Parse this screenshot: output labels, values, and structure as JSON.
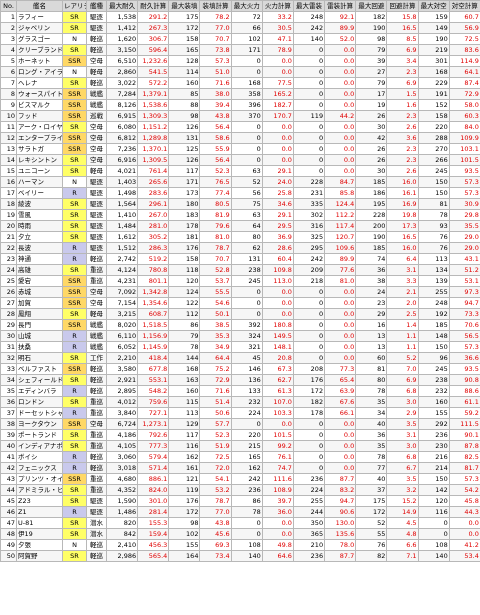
{
  "table": {
    "headers": [
      "No.",
      "艦名",
      "レアリティ",
      "艦種",
      "最大耐久",
      "耐久計算",
      "最大装填",
      "装填計算",
      "最大火力",
      "火力計算",
      "最大雷装",
      "雷装計算",
      "最大回避",
      "回避計算",
      "最大対空",
      "対空計算"
    ],
    "rarity_colors": {
      "N": "#ffffff",
      "R": "#c9c9ec",
      "SR": "#ffff66",
      "SSR": "#ffd866"
    },
    "calc_color": "#e00000",
    "rows": [
      [
        "1",
        "ラフィー",
        "SR",
        "駆逐",
        "1,538",
        "291.2",
        "175",
        "78.2",
        "72",
        "33.2",
        "248",
        "92.1",
        "182",
        "15.8",
        "159",
        "60.7"
      ],
      [
        "2",
        "ジャベリン",
        "SR",
        "駆逐",
        "1,412",
        "267.3",
        "172",
        "77.0",
        "66",
        "30.5",
        "242",
        "89.9",
        "190",
        "16.5",
        "149",
        "56.9"
      ],
      [
        "3",
        "グラスゴー",
        "N",
        "軽巡",
        "1,620",
        "306.7",
        "158",
        "70.7",
        "102",
        "47.1",
        "140",
        "52.0",
        "98",
        "8.5",
        "190",
        "72.5"
      ],
      [
        "4",
        "クリーブランド",
        "SR",
        "軽巡",
        "3,150",
        "596.4",
        "165",
        "73.8",
        "171",
        "78.9",
        "0",
        "0.0",
        "79",
        "6.9",
        "219",
        "83.6"
      ],
      [
        "5",
        "ホーネット",
        "SSR",
        "空母",
        "6,510",
        "1,232.6",
        "128",
        "57.3",
        "0",
        "0.0",
        "0",
        "0.0",
        "39",
        "3.4",
        "301",
        "114.9"
      ],
      [
        "6",
        "ロング・アイランド",
        "N",
        "軽母",
        "2,860",
        "541.5",
        "114",
        "51.0",
        "0",
        "0.0",
        "0",
        "0.0",
        "27",
        "2.3",
        "168",
        "64.1"
      ],
      [
        "7",
        "ヘレナ",
        "SR",
        "軽巡",
        "3,022",
        "572.2",
        "160",
        "71.6",
        "168",
        "77.5",
        "0",
        "0.0",
        "79",
        "6.9",
        "229",
        "87.4"
      ],
      [
        "8",
        "ウォースパイト",
        "SSR",
        "戦艦",
        "7,284",
        "1,379.1",
        "85",
        "38.0",
        "358",
        "165.2",
        "0",
        "0.0",
        "17",
        "1.5",
        "191",
        "72.9"
      ],
      [
        "9",
        "ビスマルク",
        "SSR",
        "戦艦",
        "8,126",
        "1,538.6",
        "88",
        "39.4",
        "396",
        "182.7",
        "0",
        "0.0",
        "19",
        "1.6",
        "152",
        "58.0"
      ],
      [
        "10",
        "フッド",
        "SSR",
        "巡戦",
        "6,915",
        "1,309.3",
        "98",
        "43.8",
        "370",
        "170.7",
        "119",
        "44.2",
        "26",
        "2.3",
        "158",
        "60.3"
      ],
      [
        "11",
        "アーク・ロイヤル",
        "SR",
        "空母",
        "6,080",
        "1,151.2",
        "126",
        "56.4",
        "0",
        "0.0",
        "0",
        "0.0",
        "30",
        "2.6",
        "220",
        "84.0"
      ],
      [
        "12",
        "エンタープライズ",
        "SSR",
        "空母",
        "6,812",
        "1,289.8",
        "131",
        "58.6",
        "0",
        "0.0",
        "0",
        "0.0",
        "42",
        "3.6",
        "288",
        "109.9"
      ],
      [
        "13",
        "サラトガ",
        "SSR",
        "空母",
        "7,236",
        "1,370.1",
        "125",
        "55.9",
        "0",
        "0.0",
        "0",
        "0.0",
        "26",
        "2.3",
        "270",
        "103.1"
      ],
      [
        "14",
        "レキシントン",
        "SR",
        "空母",
        "6,916",
        "1,309.5",
        "126",
        "56.4",
        "0",
        "0.0",
        "0",
        "0.0",
        "26",
        "2.3",
        "266",
        "101.5"
      ],
      [
        "15",
        "ユニコーン",
        "SR",
        "軽母",
        "4,021",
        "761.4",
        "117",
        "52.3",
        "63",
        "29.1",
        "0",
        "0.0",
        "30",
        "2.6",
        "245",
        "93.5"
      ],
      [
        "16",
        "ハーマン",
        "N",
        "駆逐",
        "1,403",
        "265.6",
        "171",
        "76.5",
        "52",
        "24.0",
        "228",
        "84.7",
        "185",
        "16.0",
        "150",
        "57.3"
      ],
      [
        "17",
        "ベイリー",
        "R",
        "駆逐",
        "1,498",
        "283.6",
        "173",
        "77.4",
        "56",
        "25.8",
        "231",
        "85.8",
        "186",
        "16.1",
        "150",
        "57.3"
      ],
      [
        "18",
        "綾波",
        "SR",
        "駆逐",
        "1,564",
        "296.1",
        "180",
        "80.5",
        "75",
        "34.6",
        "335",
        "124.4",
        "195",
        "16.9",
        "81",
        "30.9"
      ],
      [
        "19",
        "雪風",
        "SR",
        "駆逐",
        "1,410",
        "267.0",
        "183",
        "81.9",
        "63",
        "29.1",
        "302",
        "112.2",
        "228",
        "19.8",
        "78",
        "29.8"
      ],
      [
        "20",
        "時雨",
        "SR",
        "駆逐",
        "1,484",
        "281.0",
        "178",
        "79.6",
        "64",
        "29.5",
        "316",
        "117.4",
        "200",
        "17.3",
        "93",
        "35.5"
      ],
      [
        "21",
        "夕立",
        "SR",
        "駆逐",
        "1,612",
        "305.2",
        "181",
        "81.0",
        "80",
        "36.9",
        "325",
        "120.7",
        "190",
        "16.5",
        "76",
        "29.0"
      ],
      [
        "22",
        "長波",
        "R",
        "駆逐",
        "1,512",
        "286.3",
        "176",
        "78.7",
        "62",
        "28.6",
        "295",
        "109.6",
        "185",
        "16.0",
        "76",
        "29.0"
      ],
      [
        "23",
        "神通",
        "R",
        "軽巡",
        "2,742",
        "519.2",
        "158",
        "70.7",
        "131",
        "60.4",
        "242",
        "89.9",
        "74",
        "6.4",
        "113",
        "43.1"
      ],
      [
        "24",
        "高雄",
        "SR",
        "重巡",
        "4,124",
        "780.8",
        "118",
        "52.8",
        "238",
        "109.8",
        "209",
        "77.6",
        "36",
        "3.1",
        "134",
        "51.2"
      ],
      [
        "25",
        "愛宕",
        "SSR",
        "重巡",
        "4,231",
        "801.1",
        "120",
        "53.7",
        "245",
        "113.0",
        "218",
        "81.0",
        "38",
        "3.3",
        "139",
        "53.1"
      ],
      [
        "26",
        "赤城",
        "SSR",
        "空母",
        "7,092",
        "1,342.8",
        "124",
        "55.5",
        "0",
        "0.0",
        "0",
        "0.0",
        "24",
        "2.1",
        "255",
        "97.3"
      ],
      [
        "27",
        "加賀",
        "SSR",
        "空母",
        "7,154",
        "1,354.6",
        "122",
        "54.6",
        "0",
        "0.0",
        "0",
        "0.0",
        "23",
        "2.0",
        "248",
        "94.7"
      ],
      [
        "28",
        "鳳翔",
        "SR",
        "軽母",
        "3,215",
        "608.7",
        "112",
        "50.1",
        "0",
        "0.0",
        "0",
        "0.0",
        "29",
        "2.5",
        "192",
        "73.3"
      ],
      [
        "29",
        "長門",
        "SSR",
        "戦艦",
        "8,020",
        "1,518.5",
        "86",
        "38.5",
        "392",
        "180.8",
        "0",
        "0.0",
        "16",
        "1.4",
        "185",
        "70.6"
      ],
      [
        "30",
        "山城",
        "R",
        "戦艦",
        "6,110",
        "1,156.9",
        "79",
        "35.3",
        "324",
        "149.5",
        "0",
        "0.0",
        "13",
        "1.1",
        "148",
        "56.5"
      ],
      [
        "31",
        "扶桑",
        "R",
        "戦艦",
        "6,052",
        "1,145.9",
        "78",
        "34.9",
        "321",
        "148.1",
        "0",
        "0.0",
        "13",
        "1.1",
        "150",
        "57.3"
      ],
      [
        "32",
        "明石",
        "SR",
        "工作",
        "2,210",
        "418.4",
        "144",
        "64.4",
        "45",
        "20.8",
        "0",
        "0.0",
        "60",
        "5.2",
        "96",
        "36.6"
      ],
      [
        "33",
        "ベルファスト",
        "SSR",
        "軽巡",
        "3,580",
        "677.8",
        "168",
        "75.2",
        "146",
        "67.3",
        "208",
        "77.3",
        "81",
        "7.0",
        "245",
        "93.5"
      ],
      [
        "34",
        "シェフィールド",
        "SR",
        "軽巡",
        "2,921",
        "553.1",
        "163",
        "72.9",
        "136",
        "62.7",
        "176",
        "65.4",
        "80",
        "6.9",
        "238",
        "90.8"
      ],
      [
        "35",
        "エディンバラ",
        "R",
        "軽巡",
        "2,895",
        "548.2",
        "160",
        "71.6",
        "133",
        "61.3",
        "172",
        "63.9",
        "78",
        "6.8",
        "232",
        "88.6"
      ],
      [
        "36",
        "ロンドン",
        "SR",
        "重巡",
        "4,012",
        "759.6",
        "115",
        "51.4",
        "232",
        "107.0",
        "182",
        "67.6",
        "35",
        "3.0",
        "160",
        "61.1"
      ],
      [
        "37",
        "ドーセットシャー",
        "R",
        "重巡",
        "3,840",
        "727.1",
        "113",
        "50.6",
        "224",
        "103.3",
        "178",
        "66.1",
        "34",
        "2.9",
        "155",
        "59.2"
      ],
      [
        "38",
        "ヨークタウン",
        "SSR",
        "空母",
        "6,724",
        "1,273.1",
        "129",
        "57.7",
        "0",
        "0.0",
        "0",
        "0.0",
        "40",
        "3.5",
        "292",
        "111.5"
      ],
      [
        "39",
        "ポートランド",
        "SR",
        "重巡",
        "4,186",
        "792.6",
        "117",
        "52.3",
        "220",
        "101.5",
        "0",
        "0.0",
        "36",
        "3.1",
        "236",
        "90.1"
      ],
      [
        "40",
        "インディアナポリス",
        "SR",
        "重巡",
        "4,105",
        "777.3",
        "116",
        "51.9",
        "215",
        "99.2",
        "0",
        "0.0",
        "35",
        "3.0",
        "230",
        "87.8"
      ],
      [
        "41",
        "ボイシ",
        "R",
        "軽巡",
        "3,060",
        "579.4",
        "162",
        "72.5",
        "165",
        "76.1",
        "0",
        "0.0",
        "78",
        "6.8",
        "216",
        "82.5"
      ],
      [
        "42",
        "フェニックス",
        "R",
        "軽巡",
        "3,018",
        "571.4",
        "161",
        "72.0",
        "162",
        "74.7",
        "0",
        "0.0",
        "77",
        "6.7",
        "214",
        "81.7"
      ],
      [
        "43",
        "プリンツ・オイゲン",
        "SSR",
        "重巡",
        "4,680",
        "886.1",
        "121",
        "54.1",
        "242",
        "111.6",
        "236",
        "87.7",
        "40",
        "3.5",
        "150",
        "57.3"
      ],
      [
        "44",
        "アドミラル・ヒッパー",
        "SR",
        "重巡",
        "4,352",
        "824.0",
        "119",
        "53.2",
        "236",
        "108.9",
        "224",
        "83.2",
        "37",
        "3.2",
        "142",
        "54.2"
      ],
      [
        "45",
        "Z23",
        "SR",
        "駆逐",
        "1,590",
        "301.0",
        "176",
        "78.7",
        "86",
        "39.7",
        "255",
        "94.7",
        "175",
        "15.2",
        "120",
        "45.8"
      ],
      [
        "46",
        "Z1",
        "R",
        "駆逐",
        "1,486",
        "281.4",
        "172",
        "77.0",
        "78",
        "36.0",
        "244",
        "90.6",
        "172",
        "14.9",
        "116",
        "44.3"
      ],
      [
        "47",
        "U-81",
        "SR",
        "潜水",
        "820",
        "155.3",
        "98",
        "43.8",
        "0",
        "0.0",
        "350",
        "130.0",
        "52",
        "4.5",
        "0",
        "0.0"
      ],
      [
        "48",
        "伊19",
        "SR",
        "潜水",
        "842",
        "159.4",
        "102",
        "45.6",
        "0",
        "0.0",
        "365",
        "135.6",
        "55",
        "4.8",
        "0",
        "0.0"
      ],
      [
        "49",
        "夕張",
        "N",
        "軽巡",
        "2,410",
        "456.3",
        "155",
        "69.3",
        "108",
        "49.8",
        "210",
        "78.0",
        "76",
        "6.6",
        "108",
        "41.2"
      ],
      [
        "50",
        "阿賀野",
        "SR",
        "軽巡",
        "2,986",
        "565.4",
        "164",
        "73.4",
        "140",
        "64.6",
        "236",
        "87.7",
        "82",
        "7.1",
        "140",
        "53.4"
      ]
    ]
  }
}
